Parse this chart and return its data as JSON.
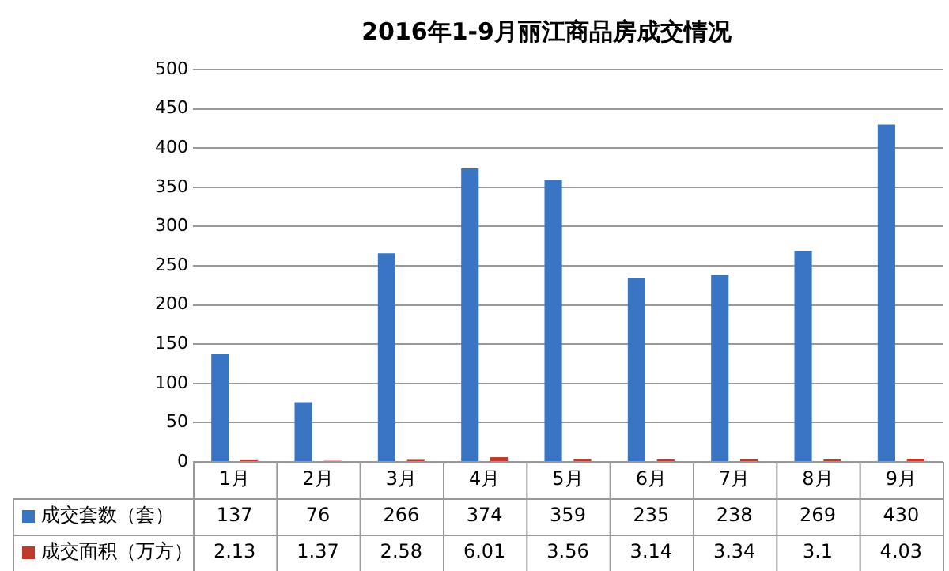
{
  "chart_data": {
    "type": "bar",
    "title": "2016年1-9月丽江商品房成交情况",
    "categories": [
      "1月",
      "2月",
      "3月",
      "4月",
      "5月",
      "6月",
      "7月",
      "8月",
      "9月"
    ],
    "series": [
      {
        "name": "成交套数（套）",
        "color": "#3a75c4",
        "values": [
          137,
          76,
          266,
          374,
          359,
          235,
          238,
          269,
          430
        ]
      },
      {
        "name": "成交面积（万方）",
        "color": "#c0392b",
        "values": [
          2.13,
          1.37,
          2.58,
          6.01,
          3.56,
          3.14,
          3.34,
          3.1,
          4.03
        ]
      }
    ],
    "ylim": [
      0,
      500
    ],
    "yticks": [
      0,
      50,
      100,
      150,
      200,
      250,
      300,
      350,
      400,
      450,
      500
    ],
    "grid": "y",
    "legend": "bottom left",
    "data_labels": true
  }
}
